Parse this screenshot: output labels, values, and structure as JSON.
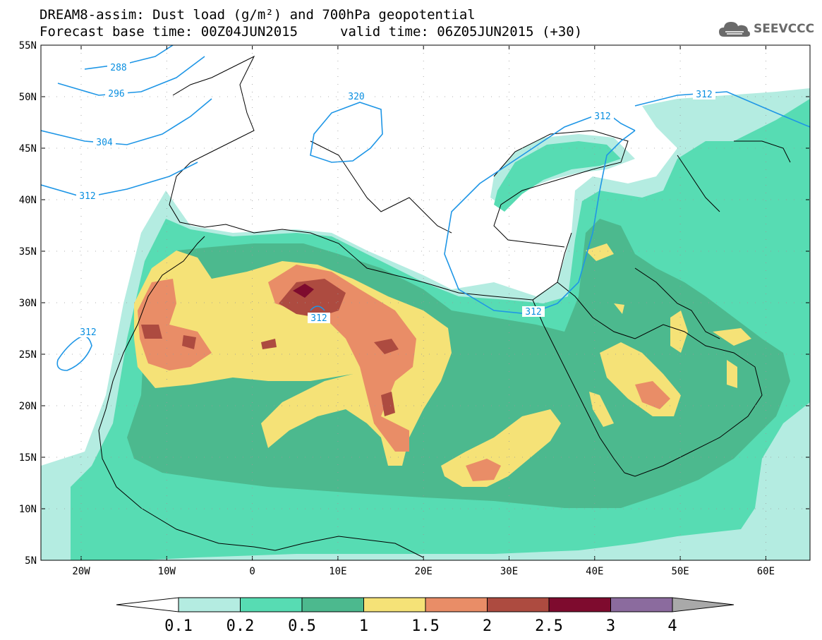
{
  "header": {
    "title_line1": "DREAM8-assim: Dust load (g/m²) and 700hPa geopotential",
    "title_line2_left": "Forecast base time: 00Z04JUN2015",
    "title_line2_right": "valid time: 06Z05JUN2015 (+30)"
  },
  "logo": {
    "text": "SEEVCCC",
    "icon": "cloud-icon"
  },
  "map": {
    "lat_labels": [
      "55N",
      "50N",
      "45N",
      "40N",
      "35N",
      "30N",
      "25N",
      "20N",
      "15N",
      "10N",
      "5N"
    ],
    "lon_labels": [
      "20W",
      "10W",
      "0",
      "10E",
      "20E",
      "30E",
      "40E",
      "50E",
      "60E"
    ],
    "contour_labels": [
      "288",
      "296",
      "304",
      "312",
      "320",
      "312",
      "312",
      "312",
      "312",
      "312"
    ]
  },
  "colorbar": {
    "labels": [
      "0.1",
      "0.2",
      "0.5",
      "1",
      "1.5",
      "2",
      "2.5",
      "3",
      "4"
    ],
    "colors": [
      "#ffffff",
      "#b4ece1",
      "#57dcb3",
      "#4cb98e",
      "#f5e277",
      "#e98d67",
      "#ad4b40",
      "#7e0b2e",
      "#8b6b9e",
      "#a9a9a9"
    ]
  },
  "colors": {
    "dust_0_1": "#b4ece1",
    "dust_0_2": "#57dcb3",
    "dust_0_5": "#4cb98e",
    "dust_1": "#f5e277",
    "dust_1_5": "#e98d67",
    "dust_2": "#ad4b40",
    "dust_2_5": "#7e0b2e",
    "contour": "#1e96e6"
  }
}
